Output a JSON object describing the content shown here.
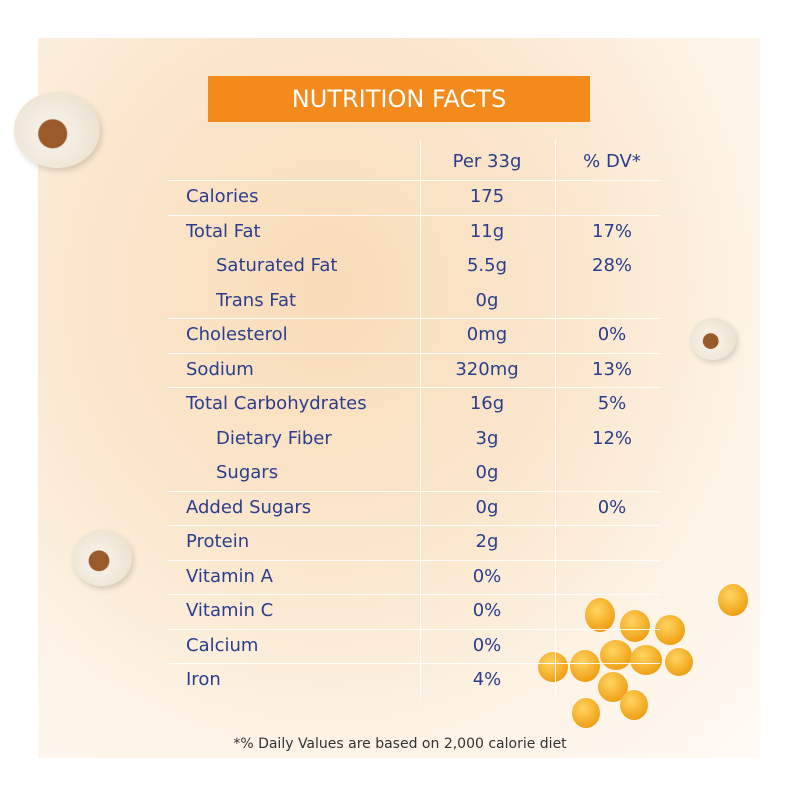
{
  "title": "NUTRITION FACTS",
  "table": {
    "headers": [
      "Per 33g",
      "% DV*"
    ],
    "rows": [
      {
        "name": "Calories",
        "amount": "175"
      },
      {
        "name": "Total Fat",
        "amount": "11g",
        "dv": "17%",
        "sub": [
          {
            "name": "Saturated Fat",
            "amount": "5.5g",
            "dv": "28%"
          },
          {
            "name": "Trans Fat",
            "amount": "0g"
          }
        ]
      },
      {
        "name": "Cholesterol",
        "amount": "0mg",
        "dv": "0%"
      },
      {
        "name": "Sodium",
        "amount": "320mg",
        "dv": "13%"
      },
      {
        "name": "Total Carbohydrates",
        "amount": "16g",
        "dv": "5%",
        "sub": [
          {
            "name": "Dietary Fiber",
            "amount": "3g",
            "dv": "12%"
          },
          {
            "name": "Sugars",
            "amount": "0g"
          }
        ]
      },
      {
        "name": "Added Sugars",
        "amount": "0g",
        "dv": "0%"
      },
      {
        "name": "Protein",
        "amount": "2g"
      },
      {
        "name": "Vitamin A",
        "amount": "0%"
      },
      {
        "name": "Vitamin C",
        "amount": "0%"
      },
      {
        "name": "Calcium",
        "amount": "0%"
      },
      {
        "name": "Iron",
        "amount": "4%"
      }
    ]
  },
  "footnote": "*% Daily Values are based on 2,000 calorie diet"
}
